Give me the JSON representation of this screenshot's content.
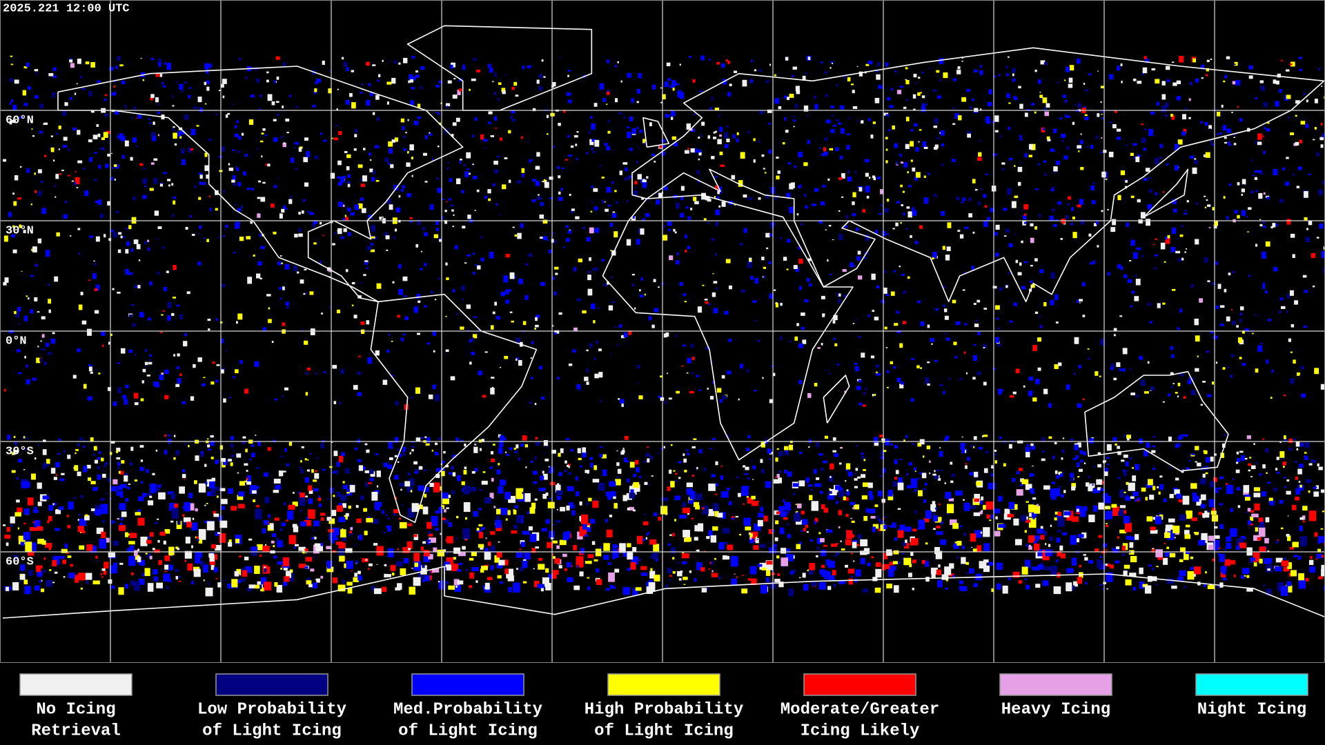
{
  "header": {
    "timestamp": "2025.221 12:00 UTC"
  },
  "map": {
    "latitude_labels": [
      "60°N",
      "30°N",
      "0°N",
      "30°S",
      "60°S"
    ]
  },
  "legend": [
    {
      "color": "#f0f0f0",
      "lines": [
        "No Icing",
        "Retrieval"
      ]
    },
    {
      "color": "#000080",
      "lines": [
        "Low Probability",
        "of Light Icing"
      ]
    },
    {
      "color": "#0000ff",
      "lines": [
        "Med.Probability",
        "of Light Icing"
      ]
    },
    {
      "color": "#ffff00",
      "lines": [
        "High Probability",
        "of Light Icing"
      ]
    },
    {
      "color": "#ff0000",
      "lines": [
        "Moderate/Greater",
        "Icing Likely"
      ]
    },
    {
      "color": "#e6a0e6",
      "lines": [
        "Heavy Icing"
      ]
    },
    {
      "color": "#00ffff",
      "lines": [
        "Night Icing"
      ]
    }
  ]
}
